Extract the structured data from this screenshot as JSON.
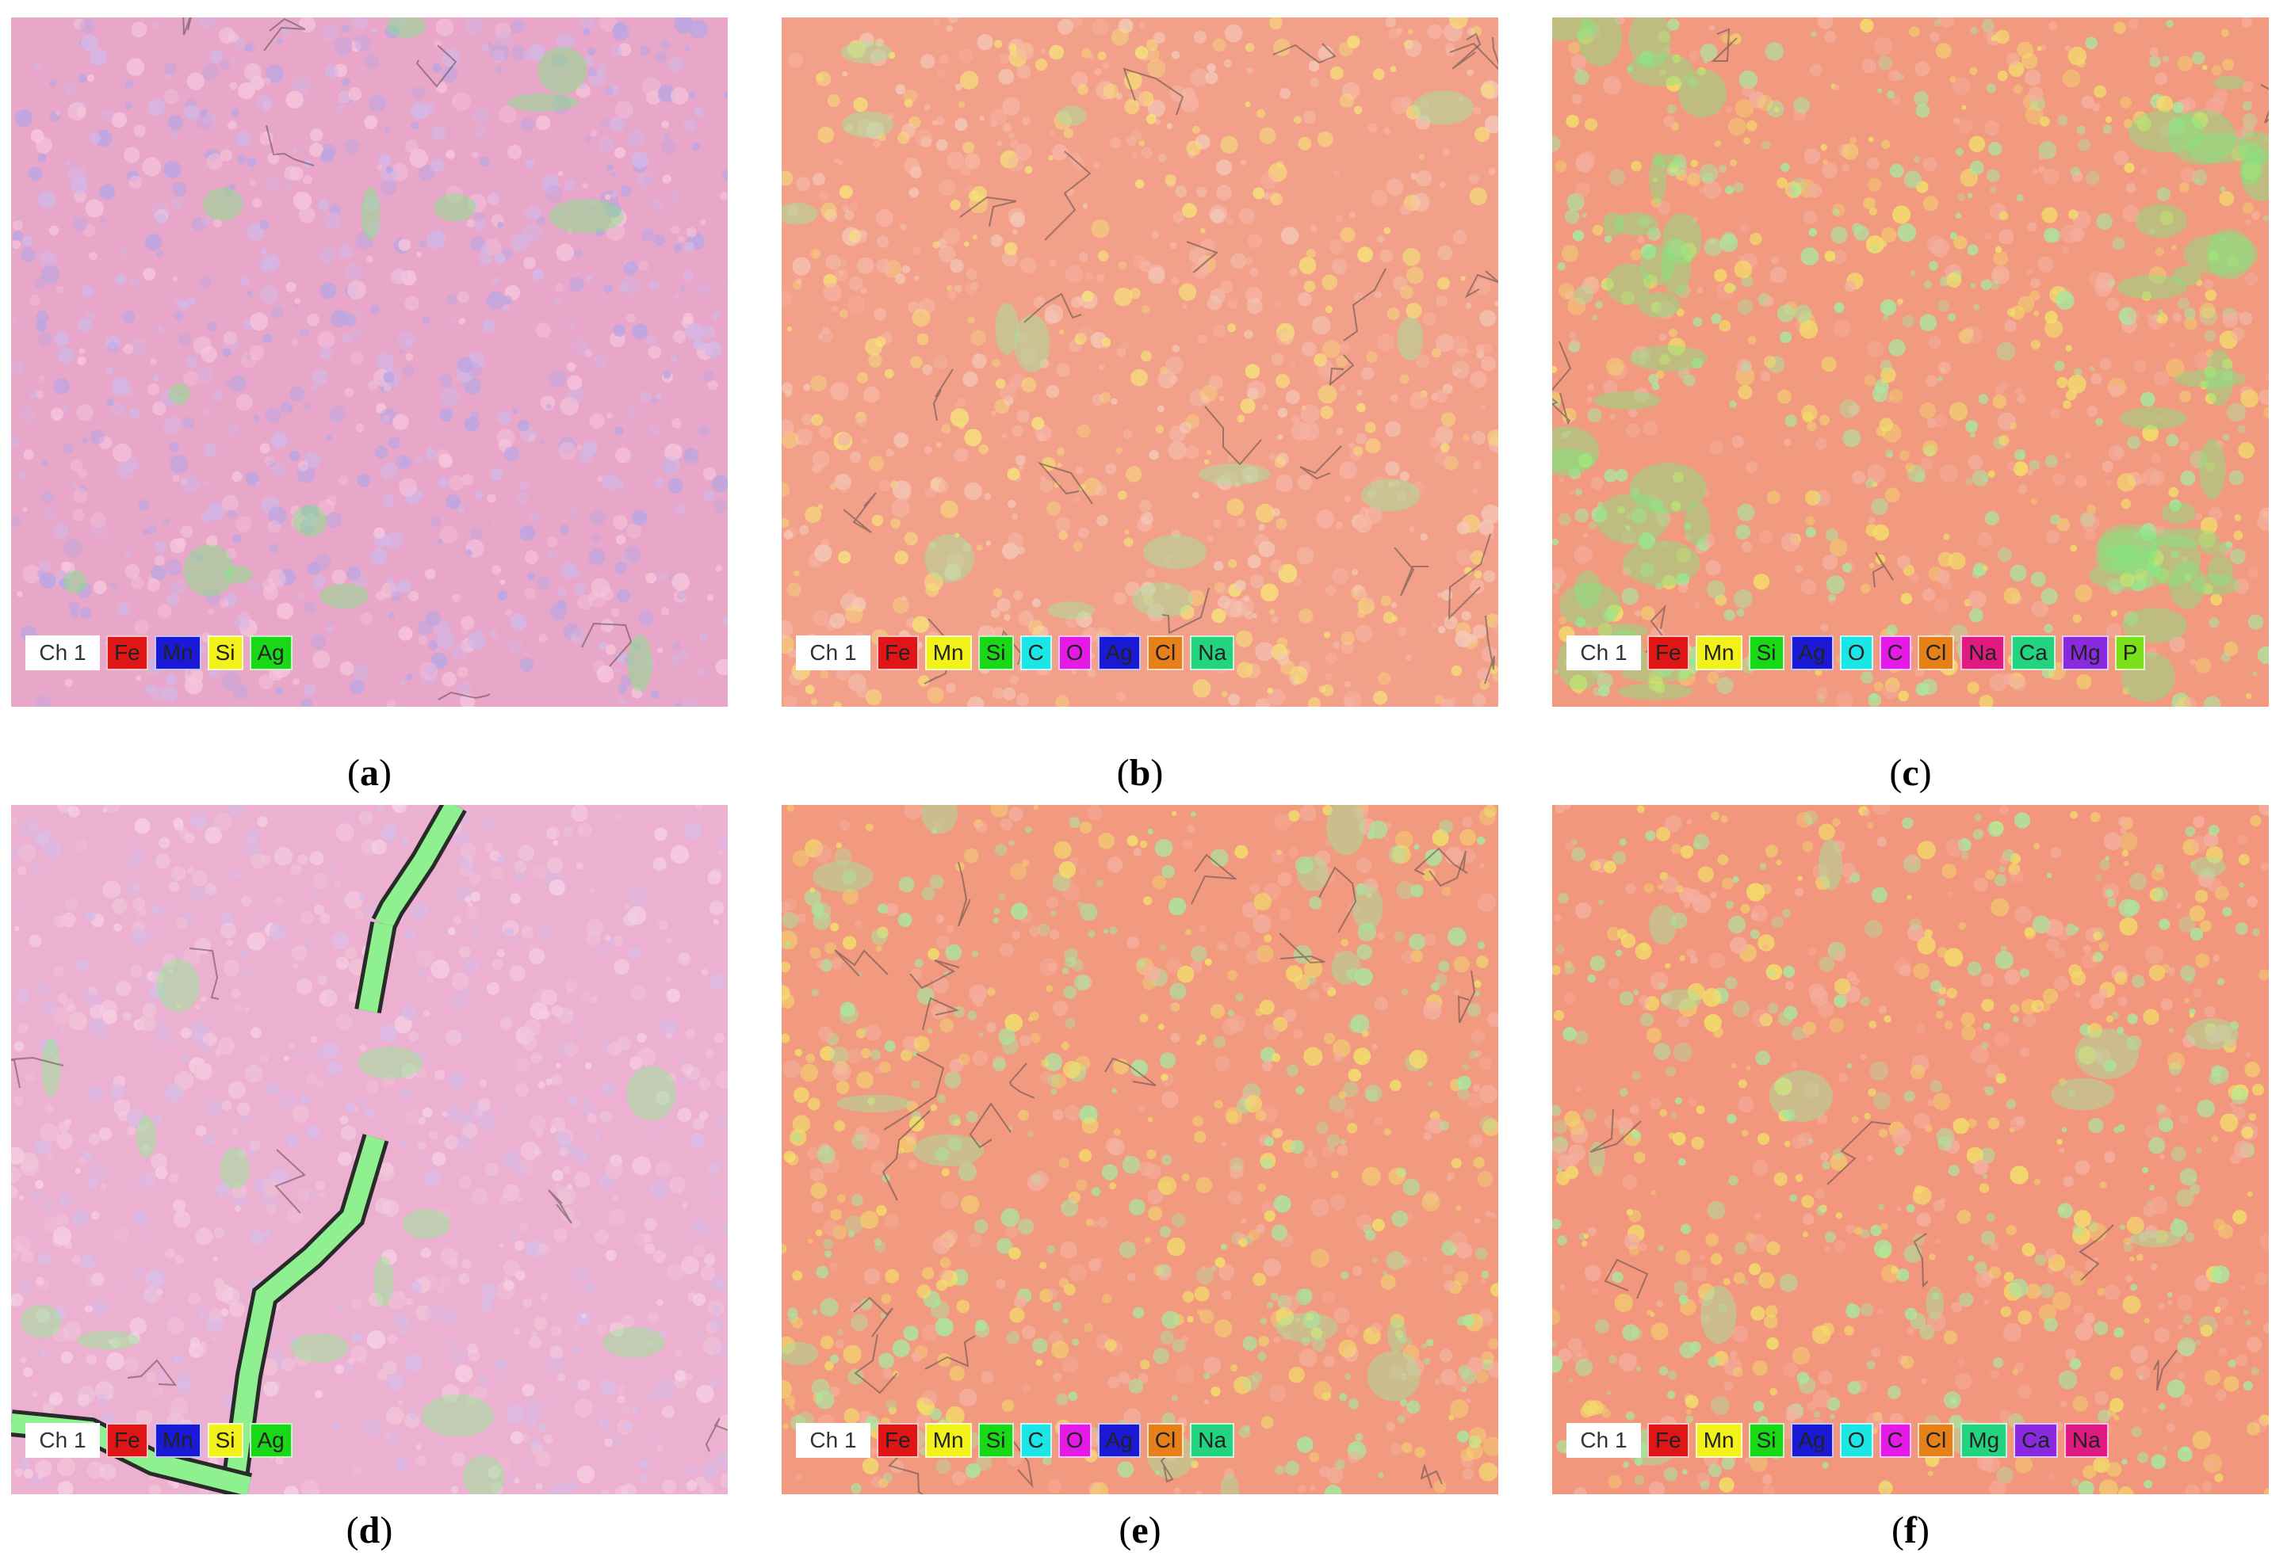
{
  "panels": [
    {
      "id": "a",
      "caption": "a",
      "legend": [
        {
          "label": "Ch 1",
          "color": "#ffffff"
        },
        {
          "label": "Fe",
          "color": "#e01515"
        },
        {
          "label": "Mn",
          "color": "#1a1ad6"
        },
        {
          "label": "Si",
          "color": "#f2f21a"
        },
        {
          "label": "Ag",
          "color": "#18d818"
        }
      ]
    },
    {
      "id": "b",
      "caption": "b",
      "legend": [
        {
          "label": "Ch 1",
          "color": "#ffffff"
        },
        {
          "label": "Fe",
          "color": "#e01515"
        },
        {
          "label": "Mn",
          "color": "#f2f21a"
        },
        {
          "label": "Si",
          "color": "#18d818"
        },
        {
          "label": "C",
          "color": "#1ae6e6"
        },
        {
          "label": "O",
          "color": "#e61ae6"
        },
        {
          "label": "Ag",
          "color": "#1a1ad6"
        },
        {
          "label": "Cl",
          "color": "#e8801a"
        },
        {
          "label": "Na",
          "color": "#22d480"
        }
      ]
    },
    {
      "id": "c",
      "caption": "c",
      "legend": [
        {
          "label": "Ch 1",
          "color": "#ffffff"
        },
        {
          "label": "Fe",
          "color": "#e01515"
        },
        {
          "label": "Mn",
          "color": "#f2f21a"
        },
        {
          "label": "Si",
          "color": "#18d818"
        },
        {
          "label": "Ag",
          "color": "#1a1ad6"
        },
        {
          "label": "O",
          "color": "#1ae6e6"
        },
        {
          "label": "C",
          "color": "#e61ae6"
        },
        {
          "label": "Cl",
          "color": "#e8801a"
        },
        {
          "label": "Na",
          "color": "#e01a80"
        },
        {
          "label": "Ca",
          "color": "#22d480"
        },
        {
          "label": "Mg",
          "color": "#8a2ae0"
        },
        {
          "label": "P",
          "color": "#7ae01a"
        }
      ]
    },
    {
      "id": "d",
      "caption": "d",
      "legend": [
        {
          "label": "Ch 1",
          "color": "#ffffff"
        },
        {
          "label": "Fe",
          "color": "#e01515"
        },
        {
          "label": "Mn",
          "color": "#1a1ad6"
        },
        {
          "label": "Si",
          "color": "#f2f21a"
        },
        {
          "label": "Ag",
          "color": "#18d818"
        }
      ]
    },
    {
      "id": "e",
      "caption": "e",
      "legend": [
        {
          "label": "Ch 1",
          "color": "#ffffff"
        },
        {
          "label": "Fe",
          "color": "#e01515"
        },
        {
          "label": "Mn",
          "color": "#f2f21a"
        },
        {
          "label": "Si",
          "color": "#18d818"
        },
        {
          "label": "C",
          "color": "#1ae6e6"
        },
        {
          "label": "O",
          "color": "#e61ae6"
        },
        {
          "label": "Ag",
          "color": "#1a1ad6"
        },
        {
          "label": "Cl",
          "color": "#e8801a"
        },
        {
          "label": "Na",
          "color": "#22d480"
        }
      ]
    },
    {
      "id": "f",
      "caption": "f",
      "legend": [
        {
          "label": "Ch 1",
          "color": "#ffffff"
        },
        {
          "label": "Fe",
          "color": "#e01515"
        },
        {
          "label": "Mn",
          "color": "#f2f21a"
        },
        {
          "label": "Si",
          "color": "#18d818"
        },
        {
          "label": "Ag",
          "color": "#1a1ad6"
        },
        {
          "label": "O",
          "color": "#1ae6e6"
        },
        {
          "label": "C",
          "color": "#e61ae6"
        },
        {
          "label": "Cl",
          "color": "#e8801a"
        },
        {
          "label": "Mg",
          "color": "#22d480"
        },
        {
          "label": "Ca",
          "color": "#8a2ae0"
        },
        {
          "label": "Na",
          "color": "#e01a80"
        }
      ]
    }
  ],
  "styles": {
    "a": {
      "base": "#e8a6c8",
      "spots": [
        "#b9a6e4",
        "#f6c6dc",
        "#d2b8e8"
      ],
      "accent": "#7ee87e"
    },
    "b": {
      "base": "#f2a08a",
      "spots": [
        "#f6e07a",
        "#f7b4a4",
        "#f4c8b8"
      ],
      "accent": "#9ee89e"
    },
    "c": {
      "base": "#f29a80",
      "spots": [
        "#f2e06a",
        "#f4b0a0",
        "#a8e8a0"
      ],
      "accent": "#7ee87e"
    },
    "d": {
      "base": "#ecb0d0",
      "spots": [
        "#f6d0e4",
        "#d8bce8",
        "#f0c4d8"
      ],
      "accent": "#8ef08e"
    },
    "e": {
      "base": "#f29a80",
      "spots": [
        "#f2e06a",
        "#f4b0a0",
        "#a8e8a0"
      ],
      "accent": "#9ee89e"
    },
    "f": {
      "base": "#f2977d",
      "spots": [
        "#f2e06a",
        "#a8e8a0",
        "#f4b0a0"
      ],
      "accent": "#9ee89e"
    }
  }
}
